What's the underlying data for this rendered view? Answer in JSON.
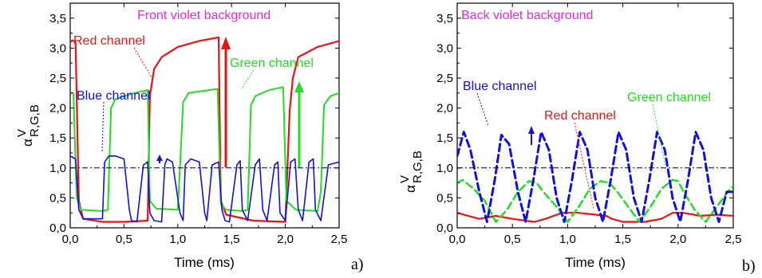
{
  "colors": {
    "red": "#ee1111",
    "green": "#22dd22",
    "blue": "#1111dd",
    "title": "#ee22ee"
  },
  "chart_data": [
    {
      "type": "line",
      "panel_label": "a)",
      "title": "Front violet background",
      "xlabel": "Time (ms)",
      "ylabel_main": "α",
      "ylabel_sup": "V",
      "ylabel_sub": "R,G,B",
      "xlim": [
        0,
        2.5
      ],
      "ylim": [
        0,
        3.75
      ],
      "xticks": [
        "0,0",
        "0,5",
        "1,0",
        "1,5",
        "2,0",
        "2,5"
      ],
      "yticks": [
        "0,0",
        "0,5",
        "1,0",
        "1,5",
        "2,0",
        "2,5",
        "3,0",
        "3,5"
      ],
      "reference_line": 1.0,
      "annotations": [
        {
          "text": "Red channel",
          "color": "#ee1111"
        },
        {
          "text": "Green channel",
          "color": "#22dd22"
        },
        {
          "text": "Blue channel",
          "color": "#1111dd"
        }
      ],
      "series": [
        {
          "name": "Red channel",
          "color": "#ee1111",
          "style": "solid",
          "width": 2.2,
          "x": [
            0,
            0.02,
            0.05,
            0.08,
            0.12,
            0.3,
            0.5,
            0.72,
            0.74,
            0.78,
            0.85,
            1.0,
            1.2,
            1.38,
            1.4,
            1.45,
            1.7,
            2.0,
            2.04,
            2.07,
            2.12,
            2.3,
            2.5
          ],
          "y": [
            3.1,
            3.13,
            3.1,
            0.45,
            0.15,
            0.1,
            0.1,
            0.12,
            2.2,
            2.65,
            2.85,
            3.02,
            3.12,
            3.18,
            0.45,
            0.22,
            0.12,
            0.1,
            1.95,
            2.5,
            2.85,
            3.02,
            3.12
          ]
        },
        {
          "name": "Green channel",
          "color": "#22dd22",
          "style": "solid",
          "width": 2.0,
          "x": [
            0,
            0.03,
            0.06,
            0.1,
            0.3,
            0.35,
            0.38,
            0.42,
            0.6,
            0.72,
            0.74,
            0.8,
            1.0,
            1.02,
            1.05,
            1.1,
            1.3,
            1.37,
            1.4,
            1.45,
            1.6,
            1.65,
            1.68,
            1.72,
            1.85,
            1.98,
            2.01,
            2.1,
            2.3,
            2.33,
            2.36,
            2.42,
            2.5
          ],
          "y": [
            2.25,
            2.25,
            0.5,
            0.3,
            0.28,
            0.3,
            2.0,
            2.15,
            2.25,
            2.3,
            0.45,
            0.32,
            0.3,
            1.0,
            2.1,
            2.25,
            2.3,
            2.32,
            0.4,
            0.3,
            0.28,
            0.3,
            2.05,
            2.2,
            2.3,
            2.35,
            0.45,
            0.3,
            0.28,
            0.6,
            2.05,
            2.2,
            2.25
          ]
        },
        {
          "name": "Blue channel",
          "color": "#1111dd",
          "style": "solid",
          "width": 1.6,
          "x": [
            0,
            0.05,
            0.08,
            0.12,
            0.3,
            0.32,
            0.36,
            0.42,
            0.5,
            0.55,
            0.57,
            0.62,
            0.68,
            0.72,
            0.74,
            0.78,
            0.85,
            0.88,
            0.9,
            0.95,
            1.02,
            1.05,
            1.07,
            1.12,
            1.2,
            1.25,
            1.27,
            1.32,
            1.38,
            1.41,
            1.44,
            1.48,
            1.55,
            1.58,
            1.6,
            1.65,
            1.72,
            1.76,
            1.79,
            1.83,
            1.9,
            1.93,
            1.95,
            2.0,
            2.05,
            2.09,
            2.12,
            2.16,
            2.22,
            2.26,
            2.28,
            2.33,
            2.4,
            2.5
          ],
          "y": [
            1.2,
            1.15,
            0.3,
            0.15,
            0.15,
            1.1,
            1.2,
            1.2,
            1.15,
            0.3,
            0.12,
            0.1,
            1.05,
            1.1,
            0.25,
            0.12,
            0.1,
            1.05,
            1.15,
            1.1,
            0.25,
            0.12,
            1.05,
            1.15,
            1.1,
            0.25,
            0.12,
            1.05,
            1.1,
            0.3,
            0.12,
            0.1,
            1.05,
            1.12,
            0.3,
            0.12,
            1.05,
            1.15,
            0.3,
            0.12,
            1.05,
            1.1,
            0.25,
            0.12,
            1.1,
            1.15,
            0.3,
            0.12,
            1.1,
            1.15,
            0.3,
            0.12,
            1.05,
            1.1
          ]
        }
      ]
    },
    {
      "type": "line",
      "panel_label": "b)",
      "title": "Back violet background",
      "xlabel": "Time (ms)",
      "ylabel_main": "α",
      "ylabel_sup": "V",
      "ylabel_sub": "R,G,B",
      "xlim": [
        0,
        2.5
      ],
      "ylim": [
        0,
        3.75
      ],
      "xticks": [
        "0,0",
        "0,5",
        "1,0",
        "1,5",
        "2,0",
        "2,5"
      ],
      "yticks": [
        "0,0",
        "0,5",
        "1,0",
        "1,5",
        "2,0",
        "2,5",
        "3,0",
        "3,5"
      ],
      "reference_line": 1.0,
      "annotations": [
        {
          "text": "Blue channel",
          "color": "#1111dd"
        },
        {
          "text": "Red channel",
          "color": "#ee1111"
        },
        {
          "text": "Green channel",
          "color": "#22dd22"
        }
      ],
      "series": [
        {
          "name": "Red channel",
          "color": "#ee1111",
          "style": "solid",
          "width": 2.2,
          "x": [
            0,
            0.1,
            0.2,
            0.35,
            0.5,
            0.7,
            0.8,
            0.95,
            1.1,
            1.25,
            1.35,
            1.4,
            1.5,
            1.7,
            1.85,
            1.95,
            2.05,
            2.2,
            2.35,
            2.5
          ],
          "y": [
            0.25,
            0.2,
            0.15,
            0.2,
            0.15,
            0.1,
            0.15,
            0.25,
            0.25,
            0.22,
            0.2,
            0.15,
            0.1,
            0.1,
            0.15,
            0.25,
            0.25,
            0.2,
            0.22,
            0.2
          ]
        },
        {
          "name": "Green channel",
          "color": "#22dd22",
          "style": "dashed",
          "width": 2.5,
          "x": [
            0,
            0.05,
            0.15,
            0.25,
            0.35,
            0.45,
            0.55,
            0.65,
            0.72,
            0.78,
            0.9,
            1.0,
            1.1,
            1.2,
            1.3,
            1.38,
            1.45,
            1.55,
            1.65,
            1.75,
            1.85,
            1.95,
            2.0,
            2.05,
            2.15,
            2.25,
            2.35,
            2.45,
            2.5
          ],
          "y": [
            0.75,
            0.8,
            0.65,
            0.45,
            0.1,
            0.3,
            0.6,
            0.78,
            0.75,
            0.6,
            0.35,
            0.1,
            0.35,
            0.65,
            0.78,
            0.75,
            0.6,
            0.35,
            0.1,
            0.35,
            0.65,
            0.8,
            0.78,
            0.6,
            0.3,
            0.1,
            0.35,
            0.6,
            0.7
          ]
        },
        {
          "name": "Blue channel",
          "color": "#1111dd",
          "style": "dashed",
          "width": 3.0,
          "x": [
            0,
            0.06,
            0.12,
            0.2,
            0.27,
            0.34,
            0.4,
            0.47,
            0.55,
            0.62,
            0.69,
            0.76,
            0.83,
            0.9,
            0.97,
            1.04,
            1.11,
            1.18,
            1.25,
            1.32,
            1.39,
            1.46,
            1.53,
            1.6,
            1.67,
            1.74,
            1.81,
            1.88,
            1.95,
            2.02,
            2.09,
            2.16,
            2.23,
            2.3,
            2.37,
            2.44,
            2.5
          ],
          "y": [
            1.2,
            1.6,
            1.3,
            0.6,
            0.1,
            0.8,
            1.55,
            1.4,
            0.6,
            0.1,
            0.8,
            1.6,
            1.3,
            0.5,
            0.1,
            0.8,
            1.6,
            1.3,
            0.5,
            0.1,
            0.8,
            1.6,
            1.3,
            0.5,
            0.1,
            0.8,
            1.6,
            1.3,
            0.5,
            0.1,
            0.8,
            1.6,
            1.3,
            0.5,
            0.1,
            0.6,
            0.6
          ]
        }
      ]
    }
  ]
}
